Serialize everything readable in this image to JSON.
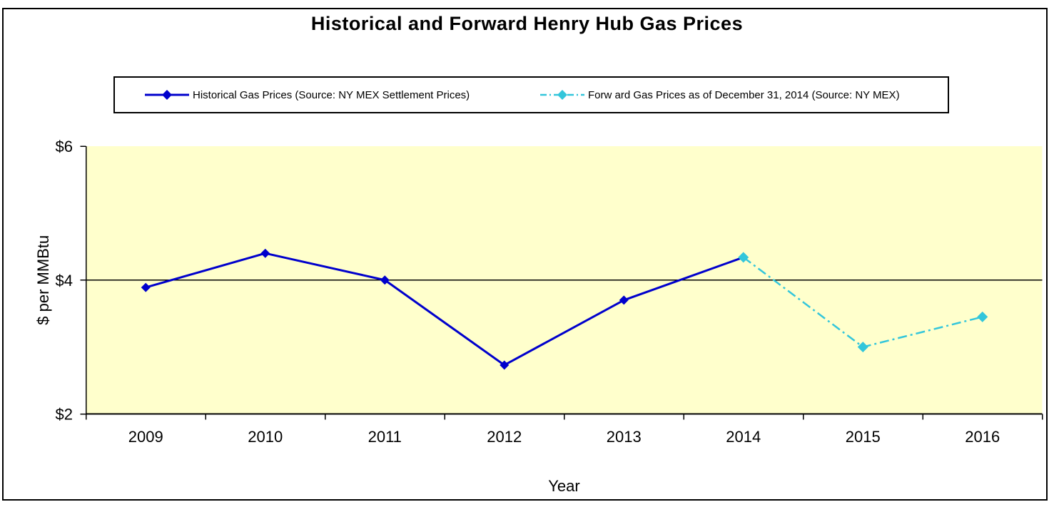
{
  "chart_data": {
    "type": "line",
    "title": "Historical and Forward Henry Hub Gas Prices",
    "xlabel": "Year",
    "ylabel": "$ per MMBtu",
    "categories": [
      "2009",
      "2010",
      "2011",
      "2012",
      "2013",
      "2014",
      "2015",
      "2016"
    ],
    "series": [
      {
        "name": "Historical Gas Prices (Source: NY MEX Settlement Prices)",
        "color": "#0000CC",
        "line_style": "solid",
        "marker": "diamond",
        "values": [
          3.89,
          4.4,
          4.0,
          2.73,
          3.7,
          4.34,
          null,
          null
        ]
      },
      {
        "name": "Forw ard Gas Prices as of December 31, 2014 (Source: NY MEX)",
        "color": "#33C6DB",
        "line_style": "dash-dot",
        "marker": "diamond",
        "values": [
          null,
          null,
          null,
          null,
          null,
          4.34,
          3.0,
          3.45
        ]
      }
    ],
    "ylim": [
      2,
      6
    ],
    "yticks": [
      {
        "value": 6,
        "label": "$6"
      },
      {
        "value": 4,
        "label": "$4"
      },
      {
        "value": 2,
        "label": "$2"
      }
    ],
    "gridlines": [
      4
    ],
    "plot_bg": "#FFFFCC",
    "axis_color": "#000000",
    "legend_position": "top",
    "grid_on": true
  }
}
